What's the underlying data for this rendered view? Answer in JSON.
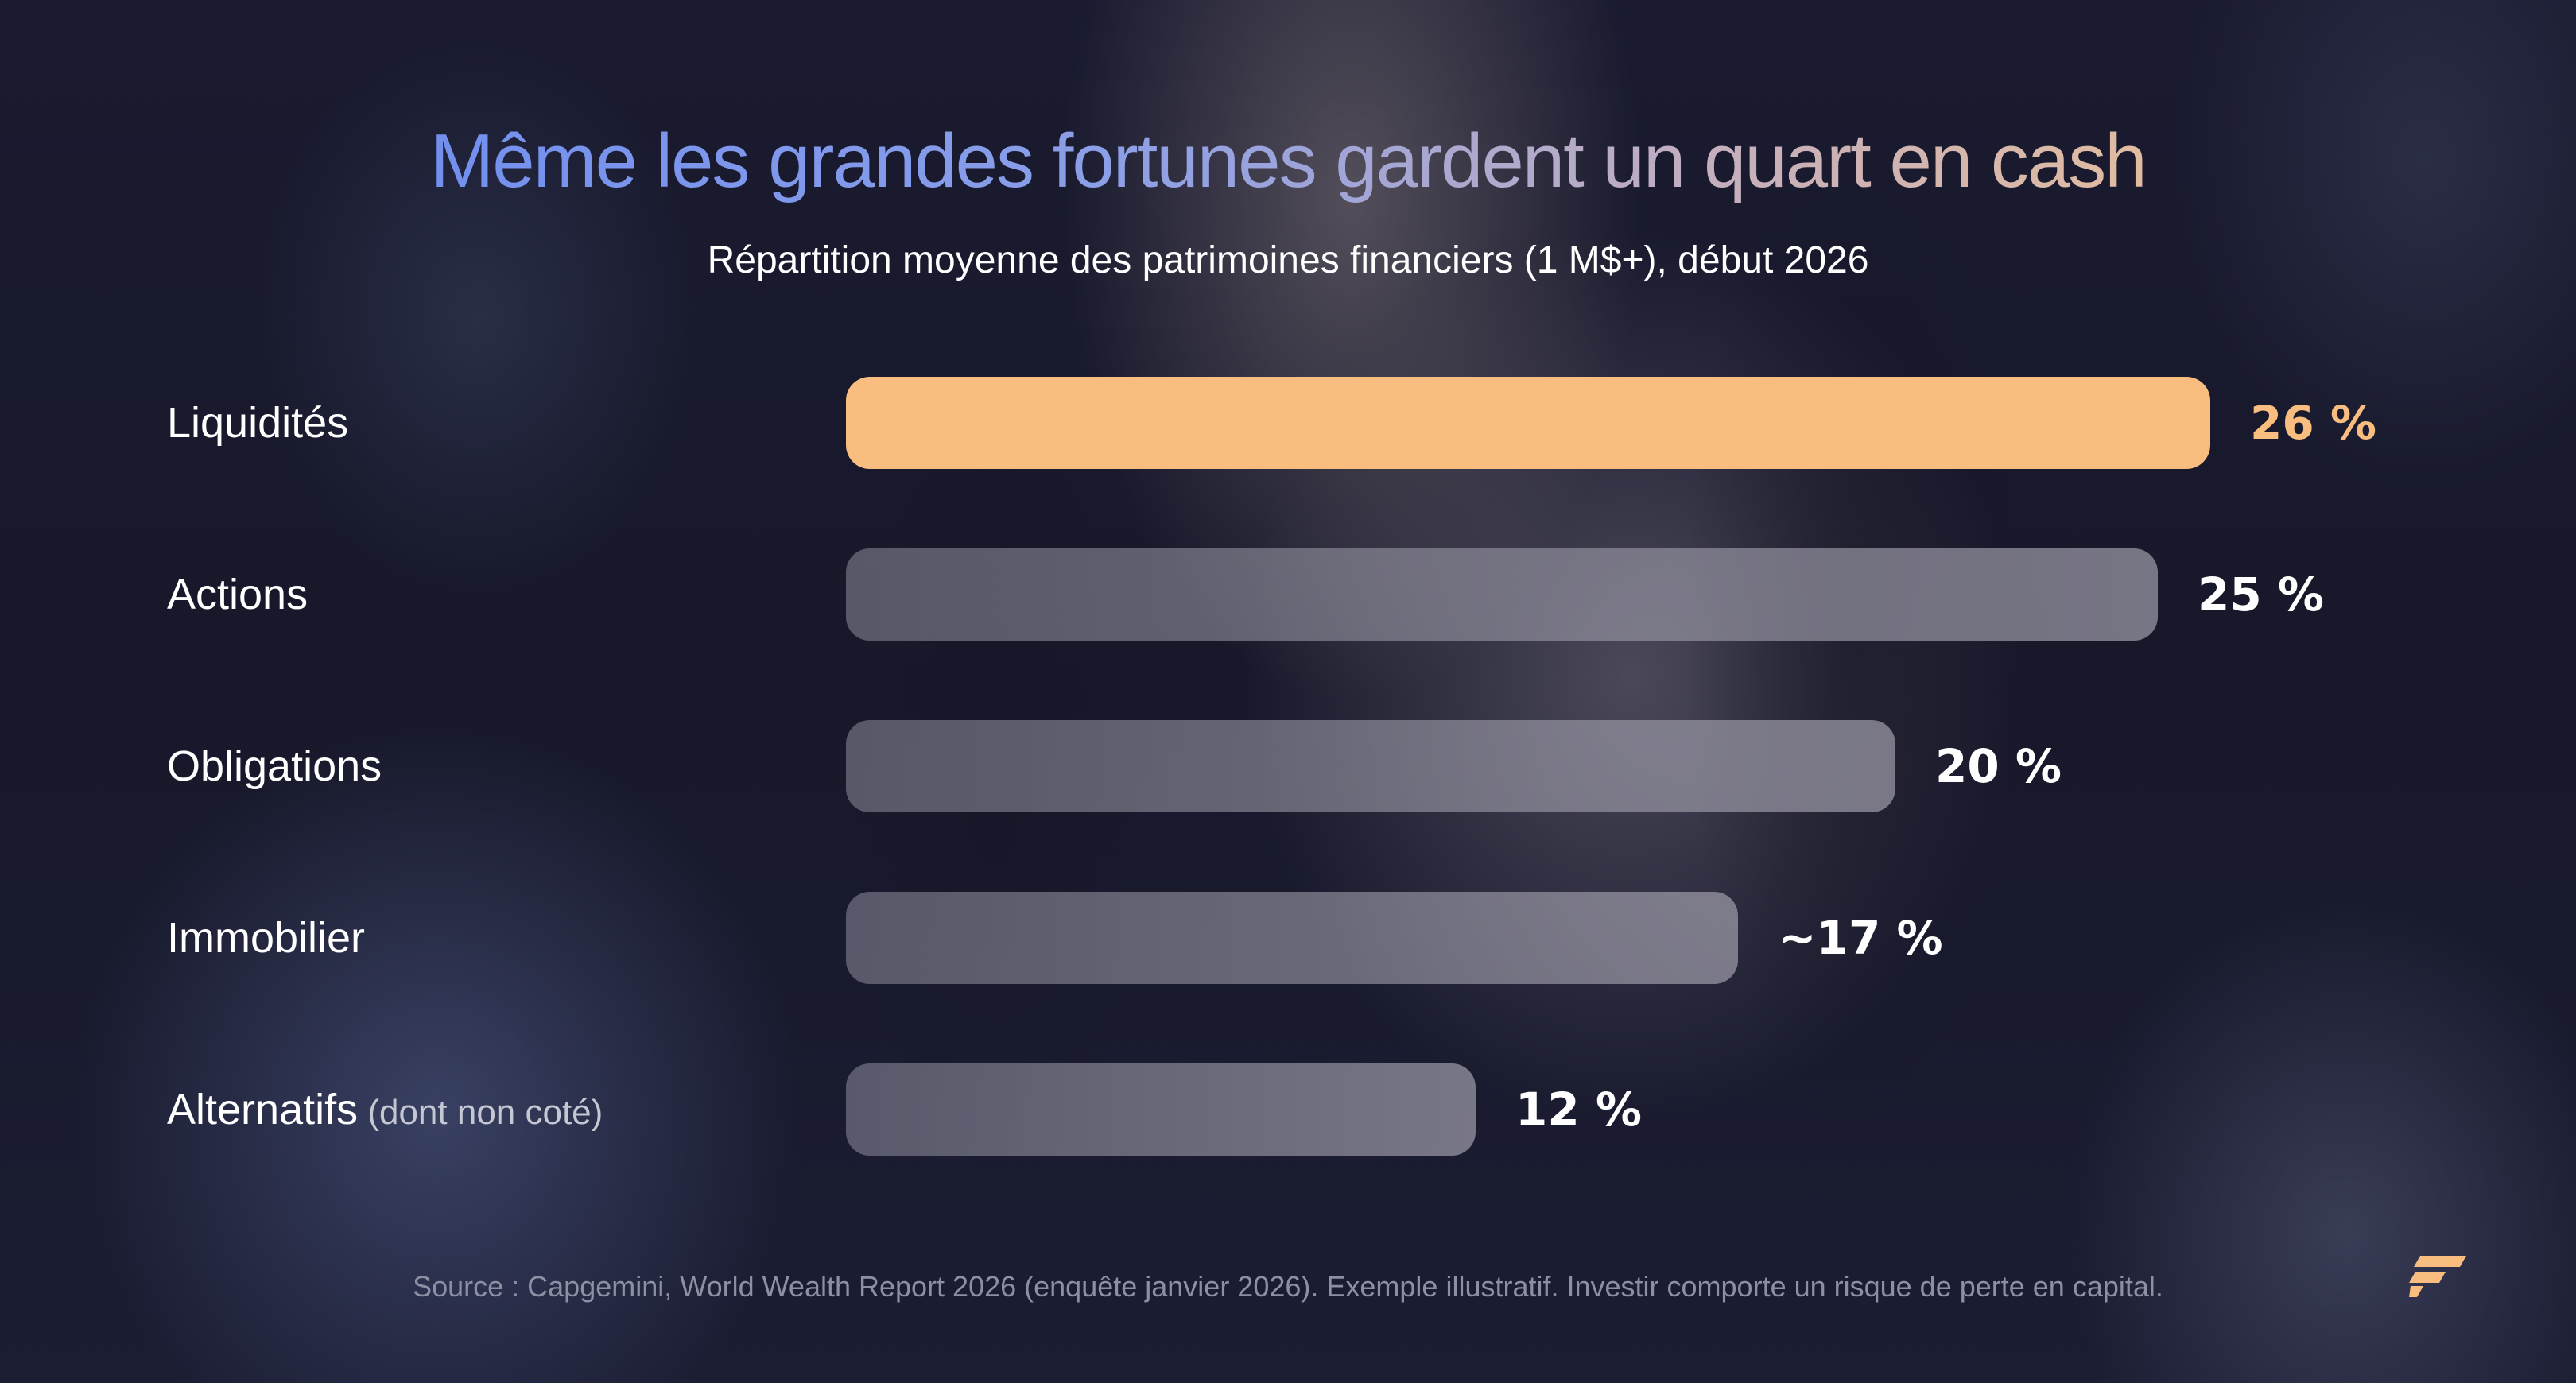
{
  "title": "Même les grandes fortunes gardent un quart en cash",
  "subtitle": "Répartition moyenne des patrimoines financiers (1 M$+), début 2026",
  "source": "Source : Capgemini, World Wealth Report 2026 (enquête janvier 2026). Exemple illustratif. Investir comporte un risque de perte en capital.",
  "colors": {
    "highlight": "#f8bd7f",
    "bar": "#8c8c9b",
    "title_start": "#6f8df0",
    "title_end": "#e8bf9a",
    "background": "#16172a"
  },
  "logo": {
    "icon": "brand-logo-icon"
  },
  "chart_data": {
    "type": "bar",
    "orientation": "horizontal",
    "title": "Même les grandes fortunes gardent un quart en cash",
    "subtitle": "Répartition moyenne des patrimoines financiers (1 M$+), début 2026",
    "xlim": [
      0,
      26
    ],
    "grid": false,
    "categories": [
      "Liquidités",
      "Actions",
      "Obligations",
      "Immobilier",
      "Alternatifs"
    ],
    "category_notes": [
      "",
      "",
      "",
      "",
      "(dont non coté)"
    ],
    "values": [
      26,
      25,
      20,
      17,
      12
    ],
    "value_labels": [
      "26 %",
      "25 %",
      "20 %",
      "~17 %",
      "12 %"
    ],
    "highlight_index": 0
  }
}
